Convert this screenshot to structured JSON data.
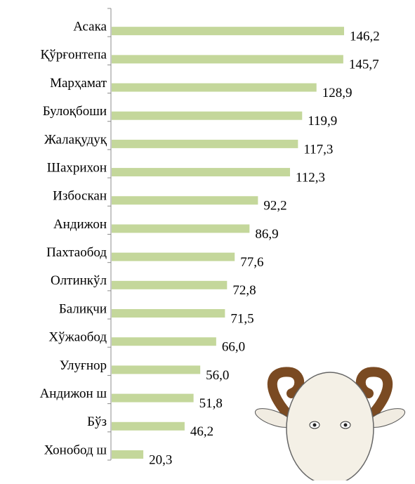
{
  "chart_data": {
    "type": "bar",
    "orientation": "horizontal",
    "categories": [
      "Асака",
      "Қўрғонтепа",
      "Марҳамат",
      "Булоқбоши",
      "Жалақудуқ",
      "Шахрихон",
      "Избоскан",
      "Андижон",
      "Пахтаобод",
      "Олтинкўл",
      "Балиқчи",
      "Хўжаобод",
      "Улуғнор",
      "Андижон ш",
      "Бўз",
      "Хонобод ш"
    ],
    "values": [
      146.2,
      145.7,
      128.9,
      119.9,
      117.3,
      112.3,
      92.2,
      86.9,
      77.6,
      72.8,
      71.5,
      66.0,
      56.0,
      51.8,
      46.2,
      20.3
    ],
    "value_labels": [
      "146,2",
      "145,7",
      "128,9",
      "119,9",
      "117,3",
      "112,3",
      "92,2",
      "86,9",
      "77,6",
      "72,8",
      "71,5",
      "66,0",
      "56,0",
      "51,8",
      "46,2",
      "20,3"
    ],
    "color": "#c4d79b"
  }
}
